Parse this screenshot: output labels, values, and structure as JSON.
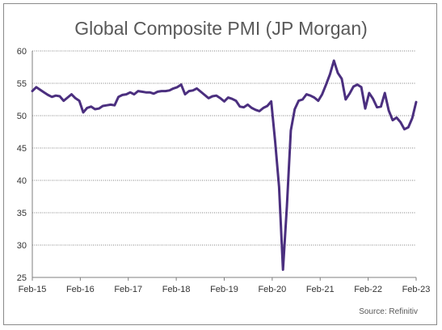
{
  "chart_data": {
    "type": "line",
    "title": "Global Composite PMI (JP Morgan)",
    "source": "Source: Refinitiv",
    "xlabel": "",
    "ylabel": "",
    "ylim": [
      25,
      60
    ],
    "yticks": [
      25,
      30,
      35,
      40,
      45,
      50,
      55,
      60
    ],
    "xticks": [
      "Feb-15",
      "Feb-16",
      "Feb-17",
      "Feb-18",
      "Feb-19",
      "Feb-20",
      "Feb-21",
      "Feb-22",
      "Feb-23"
    ],
    "grid": "horizontal",
    "legend": "none",
    "line_color": "#4b2f7f",
    "series": [
      {
        "values": [
          53.8,
          54.4,
          54.0,
          53.6,
          53.2,
          52.9,
          53.1,
          53.0,
          52.3,
          52.8,
          53.3,
          52.7,
          52.3,
          50.5,
          51.2,
          51.4,
          51.0,
          51.1,
          51.5,
          51.6,
          51.7,
          51.6,
          52.9,
          53.2,
          53.3,
          53.6,
          53.3,
          53.8,
          53.7,
          53.6,
          53.6,
          53.4,
          53.7,
          53.8,
          53.8,
          53.9,
          54.2,
          54.4,
          54.8,
          53.3,
          53.8,
          53.9,
          54.2,
          53.7,
          53.2,
          52.7,
          53.0,
          53.1,
          52.7,
          52.2,
          52.8,
          52.6,
          52.3,
          51.4,
          51.3,
          51.7,
          51.2,
          50.9,
          50.7,
          51.2,
          51.5,
          52.2,
          46.0,
          39.0,
          26.2,
          36.0,
          47.7,
          51.0,
          52.3,
          52.5,
          53.3,
          53.1,
          52.8,
          52.3,
          53.3,
          54.8,
          56.4,
          58.5,
          56.6,
          55.7,
          52.5,
          53.4,
          54.5,
          54.8,
          54.4,
          51.1,
          53.5,
          52.6,
          51.3,
          51.4,
          53.5,
          50.8,
          49.3,
          49.7,
          49.0,
          47.9,
          48.2,
          49.6,
          52.1
        ]
      }
    ]
  }
}
